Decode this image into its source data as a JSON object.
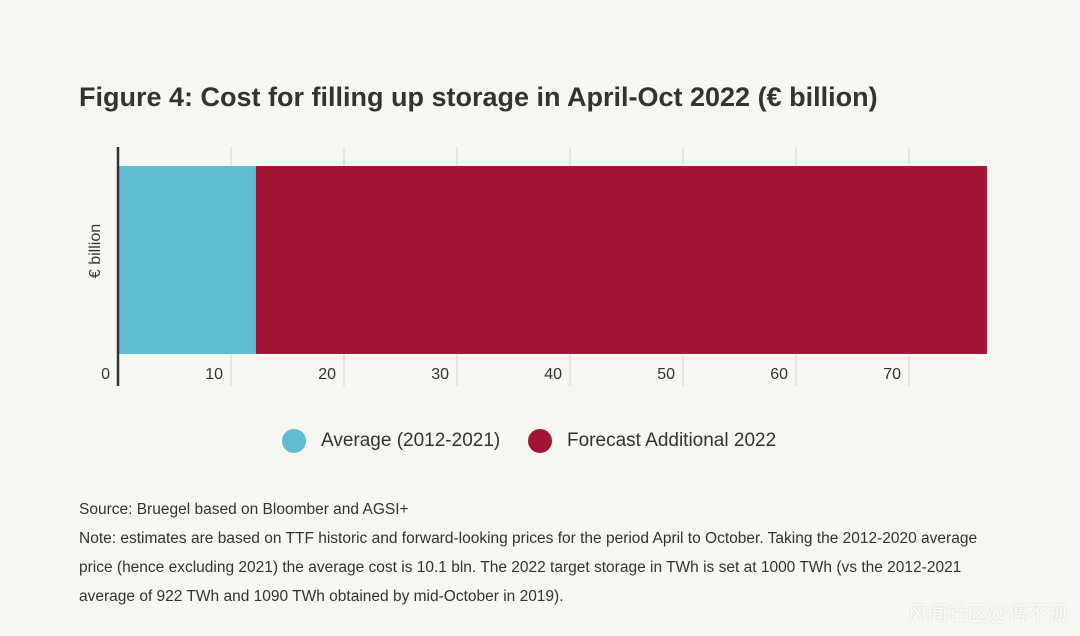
{
  "chart_data": {
    "type": "stacked-bar-horizontal",
    "title": "Figure 4: Cost for filling up storage in April-Oct 2022 (€ billion)",
    "y_label": "€ billion",
    "categories": [
      null
    ],
    "series": [
      {
        "name": "Average (2012-2021)",
        "color": "#5fbcd1",
        "values": [
          12.2
        ]
      },
      {
        "name": "Forecast Additional 2022",
        "color": "#a31535",
        "values": [
          64.7
        ]
      }
    ],
    "xlim": [
      0,
      78
    ],
    "xticks": [
      0,
      10,
      20,
      30,
      40,
      50,
      60,
      70
    ],
    "grid": true
  },
  "source": "Source: Bruegel based on Bloomber and AGSI+",
  "note": "Note: estimates are based on TTF historic and forward-looking prices for the period April to October. Taking the 2012-2020 average price (hence excluding 2021) the average cost is 10.1 bln. The 2022 target storage in TWh is set at 1000 TWh (vs the 2012-2021 average of 922 TWh and 1090 TWh obtained by mid-October in 2019).",
  "watermark": "风闻社区@傅不孤"
}
